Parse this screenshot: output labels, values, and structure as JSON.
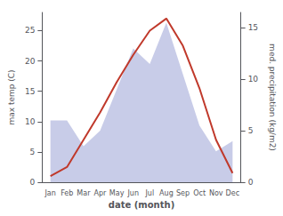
{
  "chart_data": {
    "type": "line",
    "xlabel": "date (month)",
    "ylabel": "max temp (C)",
    "y2label": "med. precipitation (kg/m2)",
    "categories": [
      "Jan",
      "Feb",
      "Mar",
      "Apr",
      "May",
      "Jun",
      "Jul",
      "Aug",
      "Sep",
      "Oct",
      "Nov",
      "Dec"
    ],
    "series": [
      {
        "type": "area",
        "axis": "y2",
        "color": "#c8cce8",
        "values": [
          6.0,
          6.0,
          3.5,
          5.0,
          9.0,
          13.0,
          11.5,
          15.5,
          10.5,
          5.5,
          3.0,
          4.0
        ]
      },
      {
        "type": "line",
        "axis": "y",
        "color": "#c0392b",
        "values": [
          1.0,
          2.5,
          7.0,
          11.5,
          16.5,
          21.0,
          25.0,
          27.0,
          22.5,
          15.5,
          7.0,
          1.5
        ]
      }
    ],
    "ylim": [
      0,
      28
    ],
    "yticks": [
      0,
      5,
      10,
      15,
      20,
      25
    ],
    "y2lim": [
      0,
      16.5
    ],
    "y2ticks": [
      0,
      5,
      10,
      15
    ],
    "grid": false
  }
}
